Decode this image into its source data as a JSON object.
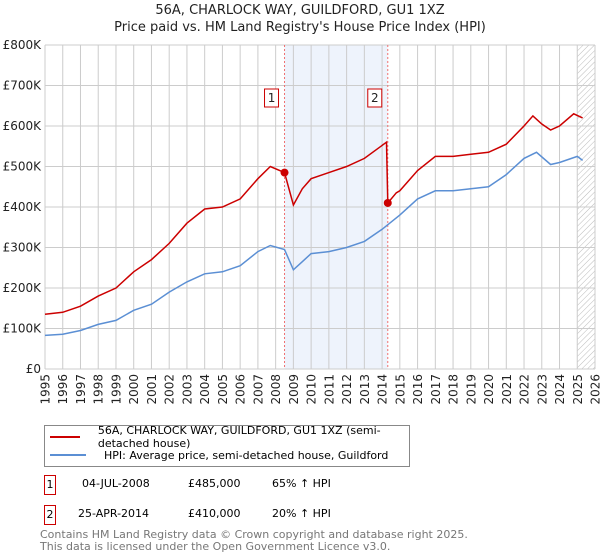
{
  "chart_data": {
    "type": "line",
    "title": "56A, CHARLOCK WAY, GUILDFORD, GU1 1XZ",
    "subtitle": "Price paid vs. HM Land Registry's House Price Index (HPI)",
    "xlim": [
      1995,
      2026
    ],
    "ylim": [
      0,
      800000
    ],
    "yticks": [
      {
        "v": 0,
        "l": "£0"
      },
      {
        "v": 100000,
        "l": "£100K"
      },
      {
        "v": 200000,
        "l": "£200K"
      },
      {
        "v": 300000,
        "l": "£300K"
      },
      {
        "v": 400000,
        "l": "£400K"
      },
      {
        "v": 500000,
        "l": "£500K"
      },
      {
        "v": 600000,
        "l": "£600K"
      },
      {
        "v": 700000,
        "l": "£700K"
      },
      {
        "v": 800000,
        "l": "£800K"
      }
    ],
    "xticks": [
      "1995",
      "1996",
      "1997",
      "1998",
      "1999",
      "2000",
      "2001",
      "2002",
      "2003",
      "2004",
      "2005",
      "2006",
      "2007",
      "2008",
      "2009",
      "2010",
      "2011",
      "2012",
      "2013",
      "2014",
      "2015",
      "2016",
      "2017",
      "2018",
      "2019",
      "2020",
      "2021",
      "2022",
      "2023",
      "2024",
      "2025",
      "2026"
    ],
    "series": [
      {
        "name": "56A, CHARLOCK WAY, GUILDFORD, GU1 1XZ (semi-detached house)",
        "color": "#cc0000",
        "x": [
          1995,
          1996,
          1997,
          1998,
          1999,
          2000,
          2001,
          2002,
          2003,
          2004,
          2005,
          2006,
          2007,
          2007.7,
          2008.5,
          2009.0,
          2009.5,
          2010,
          2011,
          2012,
          2013,
          2014.25,
          2014.32,
          2014.8,
          2015,
          2016,
          2017,
          2018,
          2019,
          2020,
          2021,
          2022,
          2022.5,
          2023,
          2023.5,
          2024,
          2024.8,
          2025.3
        ],
        "y": [
          135,
          140,
          155,
          180,
          200,
          240,
          270,
          310,
          360,
          395,
          400,
          420,
          470,
          500,
          485,
          405,
          445,
          470,
          485,
          500,
          520,
          560,
          410,
          435,
          440,
          490,
          525,
          525,
          530,
          535,
          555,
          600,
          625,
          605,
          590,
          600,
          630,
          620
        ]
      },
      {
        "name": "HPI: Average price, semi-detached house, Guildford",
        "color": "#5b8fd4",
        "x": [
          1995,
          1996,
          1997,
          1998,
          1999,
          2000,
          2001,
          2002,
          2003,
          2004,
          2005,
          2006,
          2007,
          2007.7,
          2008.5,
          2009.0,
          2009.5,
          2010,
          2011,
          2012,
          2013,
          2014,
          2015,
          2016,
          2017,
          2018,
          2019,
          2020,
          2021,
          2022,
          2022.7,
          2023.5,
          2024,
          2025,
          2025.3
        ],
        "y": [
          83,
          86,
          95,
          110,
          120,
          145,
          160,
          190,
          215,
          235,
          240,
          255,
          290,
          305,
          295,
          245,
          265,
          285,
          290,
          300,
          315,
          345,
          380,
          420,
          440,
          440,
          445,
          450,
          480,
          520,
          535,
          505,
          510,
          525,
          515
        ]
      }
    ],
    "y_units": 1000,
    "sales": [
      {
        "label": "1",
        "x": 2008.5,
        "y": 485000,
        "date": "04-JUL-2008",
        "price": "£485,000",
        "hpi": "65% ↑ HPI"
      },
      {
        "label": "2",
        "x": 2014.32,
        "y": 410000,
        "date": "25-APR-2014",
        "price": "£410,000",
        "hpi": "20% ↑ HPI"
      }
    ],
    "forecast_from": 2025.0
  },
  "footer": [
    "Contains HM Land Registry data © Crown copyright and database right 2025.",
    "This data is licensed under the Open Government Licence v3.0."
  ]
}
